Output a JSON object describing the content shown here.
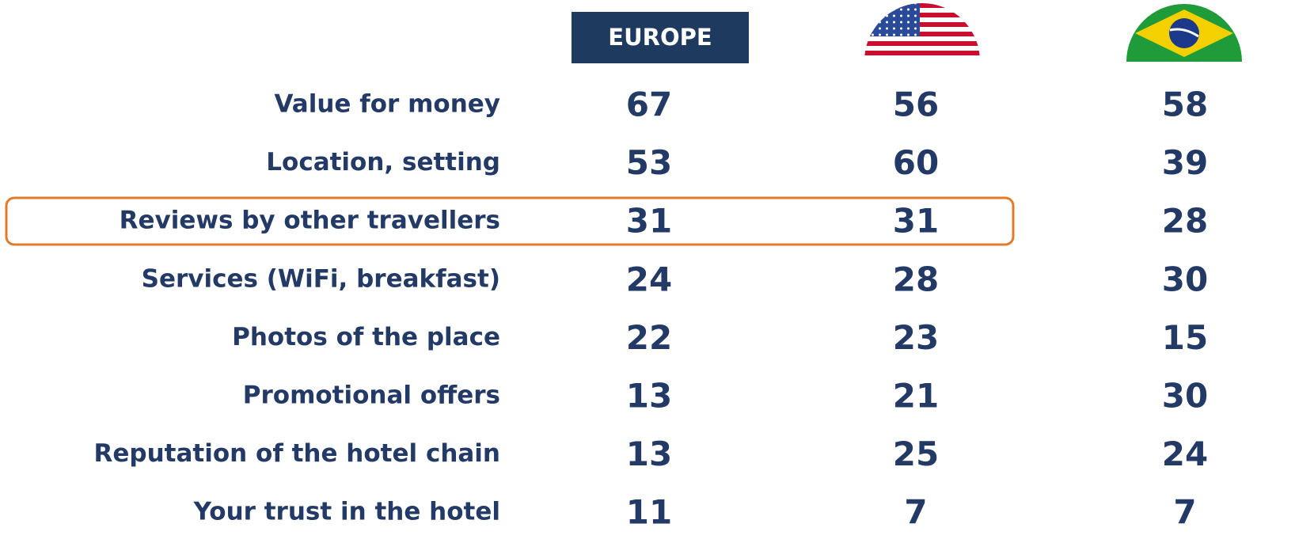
{
  "table": {
    "header": {
      "europe": "EUROPE"
    },
    "rows": [
      {
        "label": "Value for money",
        "values": [
          67,
          56,
          58
        ]
      },
      {
        "label": "Location, setting",
        "values": [
          53,
          60,
          39
        ]
      },
      {
        "label": "Reviews by other travellers",
        "values": [
          31,
          31,
          28
        ]
      },
      {
        "label": "Services (WiFi, breakfast)",
        "values": [
          24,
          28,
          30
        ]
      },
      {
        "label": "Photos of the place",
        "values": [
          22,
          23,
          15
        ]
      },
      {
        "label": "Promotional offers",
        "values": [
          13,
          21,
          30
        ]
      },
      {
        "label": "Reputation of the hotel chain",
        "values": [
          13,
          25,
          24
        ]
      },
      {
        "label": "Your trust in the hotel",
        "values": [
          11,
          7,
          7
        ]
      }
    ]
  }
}
